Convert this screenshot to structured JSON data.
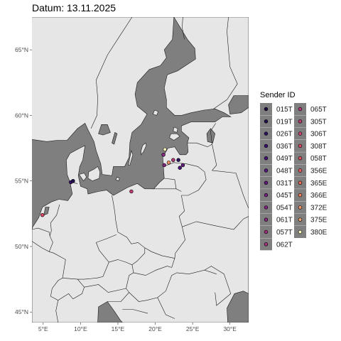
{
  "title": "Datum: 13.11.2025",
  "colors": {
    "sea": "#7f7f7f",
    "land": "#e6e6e6",
    "border": "#1a1a1a",
    "key_bg": "#7f7f7f"
  },
  "axes": {
    "x_ticks": [
      "5°E",
      "10°E",
      "15°E",
      "20°E",
      "25°E",
      "30°E"
    ],
    "x_values": [
      5,
      10,
      15,
      20,
      25,
      30
    ],
    "y_ticks": [
      "45°N",
      "50°N",
      "55°N",
      "60°N",
      "65°N"
    ],
    "y_values": [
      45,
      50,
      55,
      60,
      65
    ],
    "lon_range": [
      3.5,
      32.5
    ],
    "lat_range": [
      44.2,
      67.5
    ]
  },
  "legend": {
    "title": "Sender ID",
    "entries": [
      {
        "id": "015T",
        "color": "#1b0c41"
      },
      {
        "id": "019T",
        "color": "#221150"
      },
      {
        "id": "026T",
        "color": "#2c115f"
      },
      {
        "id": "036T",
        "color": "#3b0f70"
      },
      {
        "id": "049T",
        "color": "#4a1079"
      },
      {
        "id": "048T",
        "color": "#57157e"
      },
      {
        "id": "031T",
        "color": "#641a80"
      },
      {
        "id": "045T",
        "color": "#721f81"
      },
      {
        "id": "054T",
        "color": "#802582"
      },
      {
        "id": "061T",
        "color": "#8c2981"
      },
      {
        "id": "057T",
        "color": "#9b2e7f"
      },
      {
        "id": "062T",
        "color": "#a8327d"
      },
      {
        "id": "065T",
        "color": "#b73779"
      },
      {
        "id": "305T",
        "color": "#c43c75"
      },
      {
        "id": "306T",
        "color": "#d2446f"
      },
      {
        "id": "308T",
        "color": "#de4968"
      },
      {
        "id": "058T",
        "color": "#e85362"
      },
      {
        "id": "356E",
        "color": "#f1605d"
      },
      {
        "id": "365E",
        "color": "#f6705c"
      },
      {
        "id": "366E",
        "color": "#fa815f"
      },
      {
        "id": "372E",
        "color": "#fd9567"
      },
      {
        "id": "375E",
        "color": "#feaa74"
      },
      {
        "id": "380E",
        "color": "#fcfdbf"
      }
    ]
  },
  "sightings": [
    {
      "lon": 4.9,
      "lat": 52.4,
      "color": "#de4968"
    },
    {
      "lon": 8.7,
      "lat": 54.9,
      "color": "#3b0f70"
    },
    {
      "lon": 9.0,
      "lat": 55.0,
      "color": "#221150"
    },
    {
      "lon": 16.8,
      "lat": 54.2,
      "color": "#c43c75"
    },
    {
      "lon": 21.3,
      "lat": 57.4,
      "color": "#fcfdbf"
    },
    {
      "lon": 21.1,
      "lat": 57.0,
      "color": "#8c2981"
    },
    {
      "lon": 21.8,
      "lat": 56.4,
      "color": "#fd9567"
    },
    {
      "lon": 21.2,
      "lat": 56.2,
      "color": "#802582"
    },
    {
      "lon": 23.1,
      "lat": 56.6,
      "color": "#2c115f"
    },
    {
      "lon": 23.3,
      "lat": 56.0,
      "color": "#4a1079"
    },
    {
      "lon": 23.7,
      "lat": 56.2,
      "color": "#641a80"
    },
    {
      "lon": 22.4,
      "lat": 56.6,
      "color": "#b73779"
    }
  ]
}
